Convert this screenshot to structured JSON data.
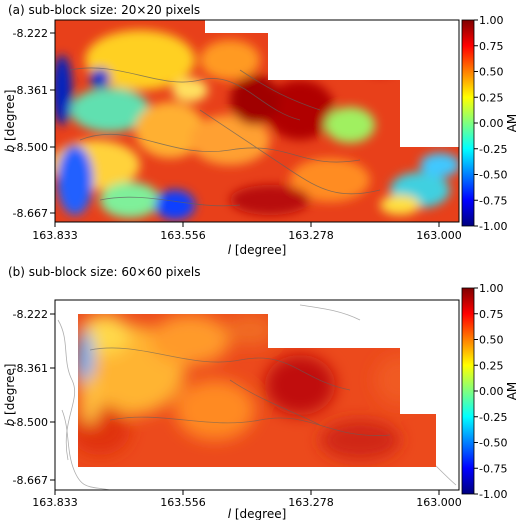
{
  "chart_data": [
    {
      "type": "heatmap",
      "title": "(a) sub-block size: 20×20 pixels",
      "xlabel_italic": "l",
      "xlabel_rest": " [degree]",
      "ylabel_italic": "b",
      "ylabel_rest": " [degree]",
      "x_ticks": [
        "163.833",
        "163.556",
        "163.278",
        "163.000"
      ],
      "y_ticks": [
        "-8.222",
        "-8.361",
        "-8.500",
        "-8.667"
      ],
      "colorbar": {
        "label": "AM",
        "range": [
          -1.0,
          1.0
        ],
        "ticks": [
          "1.00",
          "0.75",
          "0.50",
          "0.25",
          "0.00",
          "-0.25",
          "-0.50",
          "-0.75",
          "-1.00"
        ],
        "colormap": "jet"
      },
      "description": "Dense AM map with mostly red/orange values, patches of yellow, cyan and dark blue along the left edge and lower right"
    },
    {
      "type": "heatmap",
      "title": "(b) sub-block size: 60×60 pixels",
      "xlabel_italic": "l",
      "xlabel_rest": " [degree]",
      "ylabel_italic": "b",
      "ylabel_rest": " [degree]",
      "x_ticks": [
        "163.833",
        "163.556",
        "163.278",
        "163.000"
      ],
      "y_ticks": [
        "-8.222",
        "-8.361",
        "-8.500",
        "-8.667"
      ],
      "colorbar": {
        "label": "AM",
        "range": [
          -1.0,
          1.0
        ],
        "ticks": [
          "1.00",
          "0.75",
          "0.50",
          "0.25",
          "0.00",
          "-0.25",
          "-0.50",
          "-0.75",
          "-1.00"
        ],
        "colormap": "jet"
      },
      "description": "Smoother AM map, predominantly orange-red with a yellow band on the left and a thin blue strip at the left edge"
    }
  ]
}
